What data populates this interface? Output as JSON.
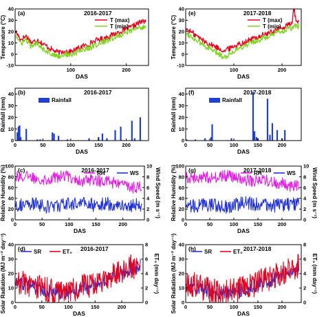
{
  "chart_data": [
    {
      "id": "a",
      "type": "line",
      "panel_label": "(a)",
      "season": "2016-2017",
      "xlabel": "DAS",
      "ylabel": "Temperature (°C)",
      "xlim": [
        0,
        240
      ],
      "ylim": [
        -10,
        40
      ],
      "xticks": [
        "100",
        "200"
      ],
      "yticks": [
        "-10",
        "0",
        "10",
        "20",
        "30",
        "40"
      ],
      "legend": "top-right",
      "series": [
        {
          "name": "T (max)",
          "color": "#e8001c",
          "shape": "temp",
          "x": [
            1,
            10,
            20,
            30,
            40,
            50,
            60,
            70,
            80,
            90,
            100,
            110,
            120,
            130,
            140,
            150,
            160,
            170,
            180,
            190,
            200,
            210,
            220,
            230,
            235
          ],
          "y": [
            20,
            13,
            16,
            10,
            13,
            9,
            6,
            3,
            1,
            3,
            2,
            4,
            7,
            8,
            11,
            13,
            14,
            16,
            18,
            20,
            22,
            24,
            27,
            29,
            30
          ]
        },
        {
          "name": "T (min)",
          "color": "#7ed321",
          "shape": "temp",
          "x": [
            1,
            10,
            20,
            30,
            40,
            50,
            60,
            70,
            80,
            90,
            100,
            110,
            120,
            130,
            140,
            150,
            160,
            170,
            180,
            190,
            200,
            210,
            220,
            230,
            235
          ],
          "y": [
            17,
            9,
            13,
            6,
            10,
            5,
            2,
            -1,
            -2,
            0,
            -1,
            1,
            4,
            5,
            7,
            9,
            11,
            13,
            15,
            17,
            19,
            21,
            23,
            24,
            25
          ]
        }
      ]
    },
    {
      "id": "e",
      "type": "line",
      "panel_label": "(e)",
      "season": "2017-2018",
      "xlabel": "DAS",
      "ylabel": "Temperature (°C)",
      "xlim": [
        0,
        240
      ],
      "ylim": [
        -10,
        40
      ],
      "xticks": [
        "100",
        "200"
      ],
      "yticks": [
        "-10",
        "0",
        "10",
        "20",
        "30",
        "40"
      ],
      "legend": "top-right",
      "series": [
        {
          "name": "T (max)",
          "color": "#e8001c",
          "shape": "temp",
          "x": [
            1,
            10,
            20,
            30,
            40,
            50,
            60,
            70,
            80,
            90,
            100,
            110,
            120,
            130,
            140,
            150,
            160,
            170,
            180,
            190,
            200,
            210,
            220,
            225,
            230,
            235
          ],
          "y": [
            22,
            20,
            17,
            14,
            11,
            9,
            7,
            5,
            3,
            5,
            7,
            9,
            10,
            12,
            14,
            15,
            17,
            18,
            20,
            22,
            23,
            25,
            27,
            38,
            28,
            29
          ]
        },
        {
          "name": "T (min)",
          "color": "#7ed321",
          "shape": "temp",
          "x": [
            1,
            10,
            20,
            30,
            40,
            50,
            60,
            70,
            80,
            90,
            100,
            110,
            120,
            130,
            140,
            150,
            160,
            170,
            180,
            190,
            200,
            210,
            220,
            225,
            230,
            235
          ],
          "y": [
            19,
            16,
            13,
            10,
            7,
            5,
            2,
            0,
            -3,
            0,
            3,
            5,
            7,
            9,
            11,
            12,
            14,
            15,
            17,
            19,
            20,
            22,
            23,
            25,
            24,
            25
          ]
        }
      ]
    },
    {
      "id": "b",
      "type": "bar",
      "panel_label": "(b)",
      "season": "2016-2017",
      "xlabel": "DAS",
      "ylabel": "Rainfall (mm)",
      "xlim": [
        0,
        240
      ],
      "ylim": [
        0,
        45
      ],
      "xticks": [
        "0",
        "50",
        "100",
        "150",
        "200"
      ],
      "yticks": [
        "0",
        "10",
        "20",
        "30",
        "40"
      ],
      "legend": "top-left",
      "series": [
        {
          "name": "Rainfall",
          "color": "#1f3fcf",
          "x": [
            4,
            6,
            8,
            10,
            20,
            40,
            45,
            67,
            70,
            78,
            94,
            133,
            150,
            157,
            165,
            180,
            190,
            210,
            215,
            225
          ],
          "y": [
            7,
            12,
            13,
            3,
            10,
            1,
            1,
            7,
            6,
            4,
            1,
            2,
            3,
            6,
            2,
            9,
            12,
            17,
            2,
            20
          ]
        }
      ]
    },
    {
      "id": "f",
      "type": "bar",
      "panel_label": "(f)",
      "season": "2017-2018",
      "xlabel": "DAS",
      "ylabel": "Rainfall (mm)",
      "xlim": [
        0,
        240
      ],
      "ylim": [
        0,
        45
      ],
      "xticks": [
        "0",
        "50",
        "100",
        "150",
        "200"
      ],
      "yticks": [
        "0",
        "10",
        "20",
        "30",
        "40"
      ],
      "legend": "top-left",
      "series": [
        {
          "name": "Rainfall",
          "color": "#1f3fcf",
          "x": [
            2,
            20,
            40,
            53,
            55,
            95,
            140,
            143,
            147,
            150,
            170,
            175,
            180,
            190,
            200,
            206
          ],
          "y": [
            1,
            1,
            2,
            3,
            14,
            2,
            42,
            8,
            3,
            2,
            36,
            5,
            15,
            9,
            2,
            9
          ]
        }
      ]
    },
    {
      "id": "c",
      "type": "line",
      "panel_label": "(c)",
      "season": "2016-2017",
      "xlabel": "DAS",
      "ylabel": "Relative Humidity (%)",
      "y2label": "Wind Speed (m s⁻¹)",
      "xlim": [
        0,
        240
      ],
      "ylim": [
        0,
        100
      ],
      "y2lim": [
        0,
        10
      ],
      "xticks": [
        "0",
        "50",
        "100",
        "150",
        "200"
      ],
      "yticks": [
        "0",
        "20",
        "40",
        "60",
        "80",
        "100"
      ],
      "y2ticks": [
        "0",
        "2",
        "4",
        "6",
        "8",
        "10"
      ],
      "legend": "top-right",
      "series": [
        {
          "name": "RH",
          "color": "#e020e0",
          "axis": "left",
          "shape": "rh",
          "x": [
            1,
            20,
            40,
            60,
            80,
            100,
            120,
            140,
            160,
            180,
            200,
            220,
            235
          ],
          "y": [
            82,
            80,
            78,
            75,
            80,
            82,
            72,
            75,
            72,
            70,
            65,
            60,
            62
          ]
        },
        {
          "name": "WS",
          "color": "#1f2fd8",
          "axis": "right",
          "shape": "ws",
          "x": [
            1,
            20,
            40,
            60,
            80,
            100,
            120,
            140,
            160,
            180,
            200,
            220,
            235
          ],
          "y": [
            2.5,
            2.2,
            2.6,
            2.0,
            2.3,
            2.5,
            2.8,
            2.4,
            2.6,
            2.5,
            2.2,
            2.4,
            2.3
          ]
        }
      ]
    },
    {
      "id": "g",
      "type": "line",
      "panel_label": "(g)",
      "season": "2017-2018",
      "xlabel": "DAS",
      "ylabel": "Relative Humidity (%)",
      "y2label": "Wind Speed (m s⁻¹)",
      "xlim": [
        0,
        240
      ],
      "ylim": [
        0,
        100
      ],
      "y2lim": [
        0,
        10
      ],
      "xticks": [
        "0",
        "50",
        "100",
        "150",
        "200"
      ],
      "yticks": [
        "0",
        "20",
        "40",
        "60",
        "80",
        "100"
      ],
      "y2ticks": [
        "0",
        "2",
        "4",
        "6",
        "8",
        "10"
      ],
      "legend": "top-right",
      "series": [
        {
          "name": "RH",
          "color": "#e020e0",
          "axis": "left",
          "shape": "rh",
          "x": [
            1,
            20,
            40,
            60,
            80,
            100,
            120,
            140,
            160,
            180,
            200,
            220,
            235
          ],
          "y": [
            80,
            78,
            80,
            78,
            82,
            80,
            75,
            72,
            75,
            70,
            68,
            62,
            65
          ]
        },
        {
          "name": "WS",
          "color": "#1f2fd8",
          "axis": "right",
          "shape": "ws",
          "x": [
            1,
            20,
            40,
            60,
            80,
            100,
            120,
            140,
            160,
            180,
            200,
            220,
            235
          ],
          "y": [
            2.4,
            2.2,
            2.5,
            2.3,
            2.0,
            2.4,
            2.8,
            2.5,
            2.6,
            2.2,
            2.3,
            2.6,
            2.4
          ]
        }
      ]
    },
    {
      "id": "d",
      "type": "line",
      "panel_label": "(d)",
      "season": "2016-2017",
      "xlabel": "DAS",
      "ylabel": "Solar Radiation (MJ m⁻² day⁻¹)",
      "y2label": "ET₀ (mm day⁻¹)",
      "xlim": [
        0,
        240
      ],
      "ylim": [
        0,
        40
      ],
      "y2lim": [
        0,
        8
      ],
      "xticks": [
        "0",
        "50",
        "100",
        "150",
        "200"
      ],
      "yticks": [
        "0",
        "10",
        "20",
        "30",
        "40"
      ],
      "y2ticks": [
        "0",
        "2",
        "4",
        "6",
        "8"
      ],
      "legend": "top-left",
      "series": [
        {
          "name": "SR",
          "color": "#3030c8",
          "axis": "left",
          "shape": "sr",
          "x": [
            1,
            20,
            40,
            60,
            80,
            100,
            120,
            140,
            160,
            180,
            200,
            220,
            235
          ],
          "y": [
            14,
            12,
            10,
            8,
            6,
            7,
            9,
            11,
            14,
            17,
            20,
            24,
            25
          ]
        },
        {
          "name": "ET₀",
          "color": "#e8001c",
          "axis": "right",
          "shape": "et",
          "x": [
            1,
            20,
            40,
            60,
            80,
            100,
            120,
            140,
            160,
            180,
            200,
            220,
            235
          ],
          "y": [
            2.8,
            2.4,
            2.0,
            1.6,
            1.2,
            1.4,
            1.8,
            2.2,
            2.8,
            3.4,
            4.0,
            4.8,
            5.0
          ]
        }
      ]
    },
    {
      "id": "h",
      "type": "line",
      "panel_label": "(h)",
      "season": "2017-2018",
      "xlabel": "DAS",
      "ylabel": "Solar Radiation (MJ m⁻² day⁻¹)",
      "y2label": "ET₀ (mm day⁻¹)",
      "xlim": [
        0,
        240
      ],
      "ylim": [
        0,
        40
      ],
      "y2lim": [
        0,
        8
      ],
      "xticks": [
        "0",
        "50",
        "100",
        "150",
        "200"
      ],
      "yticks": [
        "0",
        "10",
        "20",
        "30",
        "40"
      ],
      "y2ticks": [
        "0",
        "2",
        "4",
        "6",
        "8"
      ],
      "legend": "top-left",
      "series": [
        {
          "name": "SR",
          "color": "#3030c8",
          "axis": "left",
          "shape": "sr",
          "x": [
            1,
            20,
            40,
            60,
            80,
            100,
            120,
            140,
            160,
            180,
            200,
            220,
            235
          ],
          "y": [
            13,
            11,
            9,
            7,
            6,
            7,
            9,
            11,
            14,
            16,
            19,
            22,
            24
          ]
        },
        {
          "name": "ET₀",
          "color": "#e8001c",
          "axis": "right",
          "shape": "et",
          "x": [
            1,
            20,
            40,
            60,
            80,
            100,
            120,
            140,
            160,
            180,
            200,
            220,
            235
          ],
          "y": [
            2.6,
            2.2,
            1.8,
            1.4,
            1.2,
            1.4,
            1.8,
            2.2,
            2.8,
            3.2,
            3.8,
            4.4,
            4.8
          ]
        }
      ]
    }
  ]
}
